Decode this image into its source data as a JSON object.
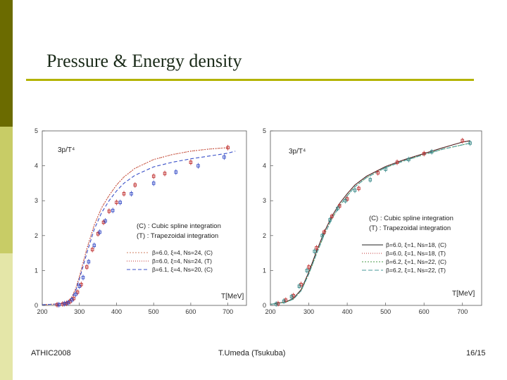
{
  "slide": {
    "title": "Pressure & Energy density",
    "footer_left": "ATHIC2008",
    "footer_center": "T.Umeda (Tsukuba)",
    "page_number": "16",
    "page_total": "/15",
    "colors": {
      "bar_dark": "#6b6b00",
      "bar_light": "#c8cc66",
      "bar_pale": "#e4e6a8",
      "rule": "#b3b300"
    }
  },
  "chart_data": [
    {
      "type": "line",
      "ylabel": "3p/T⁴",
      "xlabel": "T[MeV]",
      "xlim": [
        200,
        750
      ],
      "ylim": [
        0,
        5
      ],
      "x_ticks": [
        "200",
        "300",
        "400",
        "500",
        "600",
        "700"
      ],
      "y_ticks": [
        "0",
        "1",
        "2",
        "3",
        "4",
        "5"
      ],
      "legend_notes": [
        "(C) : Cubic spline integration",
        "(T) : Trapezoidal integration"
      ],
      "series": [
        {
          "name": "β=6.0, ξ=4, Ns=24, (C)",
          "color": "#d08060",
          "dash": "2,2",
          "x": [
            200,
            240,
            260,
            270,
            280,
            290,
            300,
            310,
            320,
            340,
            360,
            380,
            400,
            420,
            450,
            500,
            550,
            600,
            650,
            700
          ],
          "y": [
            0.02,
            0.04,
            0.07,
            0.12,
            0.25,
            0.48,
            0.82,
            1.22,
            1.62,
            2.3,
            2.8,
            3.15,
            3.45,
            3.68,
            3.93,
            4.18,
            4.32,
            4.42,
            4.48,
            4.52
          ]
        },
        {
          "name": "β=6.0, ξ=4, Ns=24, (T)",
          "color": "#c03030",
          "dash": "1,2",
          "x": [
            200,
            240,
            260,
            270,
            280,
            290,
            300,
            310,
            320,
            340,
            360,
            380,
            400,
            420,
            450,
            500,
            550,
            600,
            650,
            700
          ],
          "y": [
            0.02,
            0.04,
            0.07,
            0.12,
            0.25,
            0.48,
            0.82,
            1.22,
            1.62,
            2.3,
            2.8,
            3.15,
            3.45,
            3.68,
            3.93,
            4.18,
            4.32,
            4.42,
            4.48,
            4.52
          ]
        },
        {
          "name": "β=6.1, ξ=4, Ns=20, (C)",
          "color": "#3a50c8",
          "dash": "5,3",
          "x": [
            200,
            240,
            260,
            270,
            280,
            290,
            300,
            310,
            320,
            340,
            360,
            380,
            400,
            420,
            450,
            500,
            550,
            600,
            650,
            700,
            720
          ],
          "y": [
            0.02,
            0.04,
            0.06,
            0.1,
            0.22,
            0.42,
            0.75,
            1.12,
            1.5,
            2.18,
            2.66,
            3.0,
            3.28,
            3.5,
            3.73,
            3.97,
            4.1,
            4.2,
            4.28,
            4.36,
            4.42
          ]
        }
      ],
      "points": [
        {
          "series": "red",
          "color": "#c03030",
          "x": [
            240,
            255,
            265,
            275,
            285,
            295,
            305,
            320,
            335,
            350,
            365,
            380,
            400,
            420,
            450,
            500,
            530,
            600,
            700
          ],
          "y": [
            0.02,
            0.04,
            0.06,
            0.11,
            0.2,
            0.38,
            0.6,
            1.1,
            1.6,
            2.05,
            2.38,
            2.7,
            2.95,
            3.2,
            3.45,
            3.7,
            3.78,
            4.1,
            4.52
          ]
        },
        {
          "series": "blue",
          "color": "#3a50c8",
          "x": [
            245,
            260,
            270,
            280,
            290,
            300,
            310,
            325,
            340,
            355,
            370,
            390,
            410,
            440,
            500,
            560,
            620,
            690
          ],
          "y": [
            0.02,
            0.05,
            0.08,
            0.16,
            0.32,
            0.55,
            0.8,
            1.25,
            1.72,
            2.1,
            2.42,
            2.72,
            2.95,
            3.2,
            3.5,
            3.82,
            4.0,
            4.25
          ]
        }
      ]
    },
    {
      "type": "line",
      "ylabel": "3p/T⁴",
      "xlabel": "T[MeV]",
      "xlim": [
        200,
        750
      ],
      "ylim": [
        0,
        5
      ],
      "x_ticks": [
        "200",
        "300",
        "400",
        "500",
        "600",
        "700"
      ],
      "y_ticks": [
        "0",
        "1",
        "2",
        "3",
        "4",
        "5"
      ],
      "legend_notes": [
        "(C) : Cubic spline integration",
        "(T) : Trapezoidal integration"
      ],
      "series": [
        {
          "name": "β=6.0, ξ=1, Ns=18, (C)",
          "color": "#222222",
          "dash": "",
          "x": [
            200,
            240,
            260,
            280,
            300,
            320,
            340,
            360,
            380,
            400,
            420,
            450,
            500,
            550,
            600,
            650,
            700,
            720
          ],
          "y": [
            0.03,
            0.1,
            0.2,
            0.45,
            0.95,
            1.55,
            2.1,
            2.55,
            2.92,
            3.2,
            3.45,
            3.7,
            3.98,
            4.18,
            4.35,
            4.52,
            4.68,
            4.72
          ]
        },
        {
          "name": "β=6.0, ξ=1, Ns=18, (T)",
          "color": "#c03030",
          "dash": "1,2",
          "x": [
            200,
            240,
            260,
            280,
            300,
            320,
            340,
            360,
            380,
            400,
            420,
            450,
            500,
            550,
            600,
            650,
            700,
            720
          ],
          "y": [
            0.03,
            0.1,
            0.2,
            0.45,
            0.95,
            1.55,
            2.1,
            2.55,
            2.92,
            3.2,
            3.45,
            3.7,
            3.98,
            4.18,
            4.35,
            4.52,
            4.68,
            4.72
          ]
        },
        {
          "name": "β=6.2, ξ=1, Ns=22, (C)",
          "color": "#4a9a4a",
          "dash": "2,2",
          "x": [
            200,
            240,
            260,
            280,
            300,
            320,
            340,
            360,
            380,
            400,
            420,
            450,
            500,
            550,
            600,
            650,
            700,
            720
          ],
          "y": [
            0.03,
            0.09,
            0.18,
            0.42,
            0.9,
            1.48,
            2.02,
            2.48,
            2.85,
            3.14,
            3.4,
            3.66,
            3.95,
            4.15,
            4.32,
            4.48,
            4.6,
            4.65
          ]
        },
        {
          "name": "β=6.2, ξ=1, Ns=22, (T)",
          "color": "#4a9a9a",
          "dash": "6,3",
          "x": [
            200,
            240,
            260,
            280,
            300,
            320,
            340,
            360,
            380,
            400,
            420,
            450,
            500,
            550,
            600,
            650,
            700,
            720
          ],
          "y": [
            0.03,
            0.09,
            0.18,
            0.42,
            0.9,
            1.48,
            2.02,
            2.48,
            2.85,
            3.14,
            3.4,
            3.66,
            3.95,
            4.15,
            4.32,
            4.48,
            4.6,
            4.65
          ]
        }
      ],
      "points": [
        {
          "series": "red",
          "color": "#c03030",
          "x": [
            220,
            240,
            260,
            280,
            300,
            320,
            340,
            360,
            380,
            400,
            430,
            480,
            530,
            600,
            700
          ],
          "y": [
            0.05,
            0.15,
            0.28,
            0.6,
            1.1,
            1.65,
            2.1,
            2.55,
            2.85,
            3.05,
            3.35,
            3.8,
            4.1,
            4.35,
            4.72
          ]
        },
        {
          "series": "teal",
          "color": "#3a8a8a",
          "x": [
            215,
            235,
            255,
            275,
            295,
            315,
            335,
            355,
            375,
            395,
            420,
            460,
            500,
            560,
            620,
            720
          ],
          "y": [
            0.04,
            0.12,
            0.25,
            0.55,
            1.0,
            1.55,
            2.0,
            2.45,
            2.78,
            3.0,
            3.3,
            3.6,
            3.9,
            4.18,
            4.4,
            4.65
          ]
        }
      ]
    }
  ]
}
